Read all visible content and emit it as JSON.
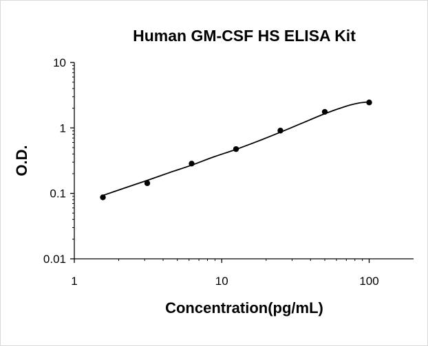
{
  "chart_data": {
    "type": "scatter",
    "title": "Human GM-CSF HS ELISA Kit",
    "xlabel": "Concentration(pg/mL)",
    "ylabel": "O.D.",
    "x_scale": "log",
    "y_scale": "log",
    "xlim": [
      1,
      200
    ],
    "ylim": [
      0.01,
      10
    ],
    "x_ticks": [
      {
        "value": 1,
        "label": "1"
      },
      {
        "value": 10,
        "label": "10"
      },
      {
        "value": 100,
        "label": "100"
      }
    ],
    "y_ticks": [
      {
        "value": 0.01,
        "label": "0.01"
      },
      {
        "value": 0.1,
        "label": "0.1"
      },
      {
        "value": 1,
        "label": "1"
      },
      {
        "value": 10,
        "label": "10"
      }
    ],
    "grid": false,
    "legend": "none",
    "series": [
      {
        "points": [
          {
            "x": 1.5625,
            "y": 0.087
          },
          {
            "x": 3.125,
            "y": 0.143
          },
          {
            "x": 6.25,
            "y": 0.285
          },
          {
            "x": 12.5,
            "y": 0.475
          },
          {
            "x": 25,
            "y": 0.91
          },
          {
            "x": 50,
            "y": 1.76
          },
          {
            "x": 100,
            "y": 2.45
          }
        ],
        "fit_curve": [
          {
            "x": 1.5625,
            "y": 0.093
          },
          {
            "x": 2.2,
            "y": 0.121
          },
          {
            "x": 3.125,
            "y": 0.158
          },
          {
            "x": 4.4,
            "y": 0.207
          },
          {
            "x": 6.25,
            "y": 0.27
          },
          {
            "x": 8.8,
            "y": 0.36
          },
          {
            "x": 12.5,
            "y": 0.47
          },
          {
            "x": 17.7,
            "y": 0.63
          },
          {
            "x": 25,
            "y": 0.86
          },
          {
            "x": 35,
            "y": 1.18
          },
          {
            "x": 50,
            "y": 1.65
          },
          {
            "x": 70,
            "y": 2.15
          },
          {
            "x": 85,
            "y": 2.4
          },
          {
            "x": 100,
            "y": 2.5
          }
        ]
      }
    ],
    "colors": {
      "marker": "#000000",
      "line": "#000000",
      "axis": "#000000"
    }
  }
}
